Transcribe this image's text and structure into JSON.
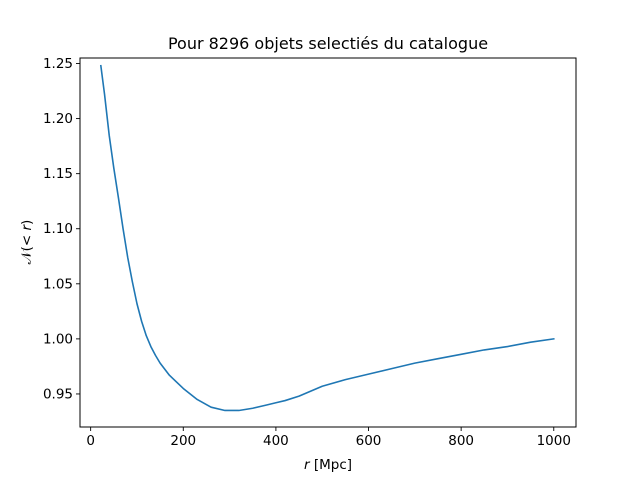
{
  "chart_data": {
    "type": "line",
    "title": "Pour 8296 objets selectiés du catalogue",
    "xlabel": "r [Mpc]",
    "xlabel_var": "r",
    "xlabel_unit": " [Mpc]",
    "ylabel": "𝒩(< r)",
    "ylabel_prefix": "𝒩(< ",
    "ylabel_var": "r",
    "ylabel_suffix": ")",
    "xlim": [
      -23,
      1048
    ],
    "ylim": [
      0.92,
      1.255
    ],
    "xticks": [
      0,
      200,
      400,
      600,
      800,
      1000
    ],
    "xtick_labels": [
      "0",
      "200",
      "400",
      "600",
      "800",
      "1000"
    ],
    "yticks": [
      0.95,
      1.0,
      1.05,
      1.1,
      1.15,
      1.2,
      1.25
    ],
    "ytick_labels": [
      "0.95",
      "1.00",
      "1.05",
      "1.10",
      "1.15",
      "1.20",
      "1.25"
    ],
    "grid": false,
    "series": [
      {
        "color": "#1f77b4",
        "x": [
          22,
          30,
          40,
          50,
          60,
          70,
          80,
          90,
          100,
          110,
          120,
          130,
          140,
          150,
          170,
          200,
          230,
          260,
          290,
          320,
          350,
          380,
          400,
          420,
          450,
          500,
          550,
          600,
          650,
          700,
          750,
          800,
          850,
          900,
          950,
          1000
        ],
        "y": [
          1.248,
          1.222,
          1.185,
          1.155,
          1.128,
          1.1,
          1.074,
          1.052,
          1.032,
          1.016,
          1.003,
          0.993,
          0.985,
          0.978,
          0.967,
          0.955,
          0.945,
          0.938,
          0.935,
          0.935,
          0.937,
          0.94,
          0.942,
          0.944,
          0.948,
          0.957,
          0.963,
          0.968,
          0.973,
          0.978,
          0.982,
          0.986,
          0.99,
          0.993,
          0.997,
          1.0
        ]
      }
    ]
  }
}
